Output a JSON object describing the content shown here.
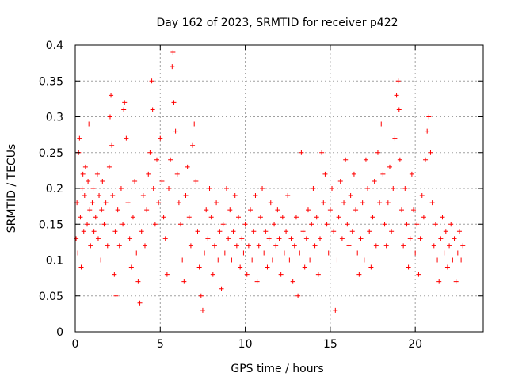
{
  "chart_data": {
    "type": "scatter",
    "title": "Day 162 of 2023, SRMTID for receiver p422",
    "xlabel": "GPS time / hours",
    "ylabel": "SRMTID / TECUs",
    "xlim": [
      0,
      24
    ],
    "ylim": [
      0,
      0.4
    ],
    "grid": true,
    "marker": "+",
    "color": "#ff0000",
    "xticks": [
      0,
      5,
      10,
      15,
      20
    ],
    "xtick_labels": [
      "0",
      "5",
      "10",
      "15",
      "20"
    ],
    "yticks": [
      0,
      0.05,
      0.1,
      0.15,
      0.2,
      0.25,
      0.3,
      0.35,
      0.4
    ],
    "ytick_labels": [
      "0",
      "0.05",
      "0.1",
      "0.15",
      "0.2",
      "0.25",
      "0.3",
      "0.35",
      "0.4"
    ],
    "series": [
      {
        "name": "SRMTID",
        "points": [
          [
            0.05,
            0.13
          ],
          [
            0.1,
            0.18
          ],
          [
            0.15,
            0.11
          ],
          [
            0.2,
            0.25
          ],
          [
            0.25,
            0.27
          ],
          [
            0.3,
            0.16
          ],
          [
            0.35,
            0.09
          ],
          [
            0.4,
            0.2
          ],
          [
            0.45,
            0.22
          ],
          [
            0.5,
            0.14
          ],
          [
            0.55,
            0.19
          ],
          [
            0.6,
            0.23
          ],
          [
            0.7,
            0.15
          ],
          [
            0.75,
            0.21
          ],
          [
            0.8,
            0.29
          ],
          [
            0.85,
            0.17
          ],
          [
            0.9,
            0.12
          ],
          [
            1.0,
            0.18
          ],
          [
            1.05,
            0.2
          ],
          [
            1.1,
            0.14
          ],
          [
            1.2,
            0.16
          ],
          [
            1.3,
            0.22
          ],
          [
            1.35,
            0.13
          ],
          [
            1.4,
            0.19
          ],
          [
            1.5,
            0.1
          ],
          [
            1.55,
            0.17
          ],
          [
            1.6,
            0.21
          ],
          [
            1.7,
            0.15
          ],
          [
            1.8,
            0.18
          ],
          [
            1.9,
            0.12
          ],
          [
            2.0,
            0.23
          ],
          [
            2.05,
            0.3
          ],
          [
            2.1,
            0.33
          ],
          [
            2.15,
            0.26
          ],
          [
            2.2,
            0.19
          ],
          [
            2.3,
            0.08
          ],
          [
            2.35,
            0.14
          ],
          [
            2.4,
            0.05
          ],
          [
            2.5,
            0.17
          ],
          [
            2.6,
            0.12
          ],
          [
            2.7,
            0.2
          ],
          [
            2.8,
            0.15
          ],
          [
            2.85,
            0.31
          ],
          [
            2.9,
            0.32
          ],
          [
            3.0,
            0.27
          ],
          [
            3.1,
            0.18
          ],
          [
            3.2,
            0.13
          ],
          [
            3.3,
            0.09
          ],
          [
            3.4,
            0.16
          ],
          [
            3.5,
            0.21
          ],
          [
            3.6,
            0.11
          ],
          [
            3.7,
            0.07
          ],
          [
            3.8,
            0.04
          ],
          [
            3.9,
            0.14
          ],
          [
            4.0,
            0.19
          ],
          [
            4.1,
            0.12
          ],
          [
            4.2,
            0.17
          ],
          [
            4.3,
            0.22
          ],
          [
            4.4,
            0.25
          ],
          [
            4.5,
            0.35
          ],
          [
            4.55,
            0.31
          ],
          [
            4.6,
            0.2
          ],
          [
            4.7,
            0.15
          ],
          [
            4.8,
            0.24
          ],
          [
            4.9,
            0.18
          ],
          [
            5.0,
            0.27
          ],
          [
            5.1,
            0.21
          ],
          [
            5.2,
            0.16
          ],
          [
            5.3,
            0.13
          ],
          [
            5.4,
            0.08
          ],
          [
            5.5,
            0.2
          ],
          [
            5.6,
            0.24
          ],
          [
            5.7,
            0.37
          ],
          [
            5.75,
            0.39
          ],
          [
            5.8,
            0.32
          ],
          [
            5.9,
            0.28
          ],
          [
            6.0,
            0.22
          ],
          [
            6.1,
            0.18
          ],
          [
            6.2,
            0.15
          ],
          [
            6.3,
            0.1
          ],
          [
            6.4,
            0.07
          ],
          [
            6.5,
            0.19
          ],
          [
            6.6,
            0.23
          ],
          [
            6.7,
            0.16
          ],
          [
            6.8,
            0.12
          ],
          [
            6.9,
            0.26
          ],
          [
            7.0,
            0.29
          ],
          [
            7.1,
            0.21
          ],
          [
            7.2,
            0.14
          ],
          [
            7.3,
            0.09
          ],
          [
            7.4,
            0.05
          ],
          [
            7.5,
            0.03
          ],
          [
            7.6,
            0.11
          ],
          [
            7.7,
            0.17
          ],
          [
            7.8,
            0.13
          ],
          [
            7.9,
            0.2
          ],
          [
            8.0,
            0.16
          ],
          [
            8.1,
            0.08
          ],
          [
            8.2,
            0.12
          ],
          [
            8.3,
            0.18
          ],
          [
            8.4,
            0.1
          ],
          [
            8.5,
            0.14
          ],
          [
            8.6,
            0.06
          ],
          [
            8.7,
            0.15
          ],
          [
            8.8,
            0.11
          ],
          [
            8.9,
            0.2
          ],
          [
            9.0,
            0.13
          ],
          [
            9.1,
            0.17
          ],
          [
            9.2,
            0.1
          ],
          [
            9.3,
            0.14
          ],
          [
            9.4,
            0.19
          ],
          [
            9.5,
            0.12
          ],
          [
            9.6,
            0.16
          ],
          [
            9.7,
            0.09
          ],
          [
            9.8,
            0.13
          ],
          [
            9.9,
            0.11
          ],
          [
            10.0,
            0.15
          ],
          [
            10.1,
            0.08
          ],
          [
            10.2,
            0.12
          ],
          [
            10.3,
            0.17
          ],
          [
            10.4,
            0.1
          ],
          [
            10.5,
            0.14
          ],
          [
            10.6,
            0.19
          ],
          [
            10.7,
            0.07
          ],
          [
            10.8,
            0.12
          ],
          [
            10.9,
            0.16
          ],
          [
            11.0,
            0.2
          ],
          [
            11.1,
            0.11
          ],
          [
            11.2,
            0.14
          ],
          [
            11.3,
            0.09
          ],
          [
            11.4,
            0.13
          ],
          [
            11.5,
            0.18
          ],
          [
            11.6,
            0.1
          ],
          [
            11.7,
            0.15
          ],
          [
            11.8,
            0.12
          ],
          [
            11.9,
            0.17
          ],
          [
            12.0,
            0.13
          ],
          [
            12.1,
            0.08
          ],
          [
            12.2,
            0.16
          ],
          [
            12.3,
            0.11
          ],
          [
            12.4,
            0.14
          ],
          [
            12.5,
            0.19
          ],
          [
            12.6,
            0.1
          ],
          [
            12.7,
            0.13
          ],
          [
            12.8,
            0.07
          ],
          [
            12.9,
            0.12
          ],
          [
            13.0,
            0.16
          ],
          [
            13.1,
            0.05
          ],
          [
            13.2,
            0.11
          ],
          [
            13.3,
            0.25
          ],
          [
            13.4,
            0.14
          ],
          [
            13.5,
            0.09
          ],
          [
            13.6,
            0.13
          ],
          [
            13.7,
            0.17
          ],
          [
            13.8,
            0.1
          ],
          [
            13.9,
            0.15
          ],
          [
            14.0,
            0.2
          ],
          [
            14.1,
            0.12
          ],
          [
            14.2,
            0.16
          ],
          [
            14.3,
            0.08
          ],
          [
            14.4,
            0.13
          ],
          [
            14.5,
            0.25
          ],
          [
            14.6,
            0.18
          ],
          [
            14.7,
            0.22
          ],
          [
            14.8,
            0.15
          ],
          [
            14.9,
            0.11
          ],
          [
            15.0,
            0.17
          ],
          [
            15.1,
            0.2
          ],
          [
            15.2,
            0.14
          ],
          [
            15.3,
            0.03
          ],
          [
            15.4,
            0.1
          ],
          [
            15.5,
            0.16
          ],
          [
            15.6,
            0.21
          ],
          [
            15.7,
            0.13
          ],
          [
            15.8,
            0.18
          ],
          [
            15.9,
            0.24
          ],
          [
            16.0,
            0.15
          ],
          [
            16.1,
            0.12
          ],
          [
            16.2,
            0.19
          ],
          [
            16.3,
            0.14
          ],
          [
            16.4,
            0.22
          ],
          [
            16.5,
            0.17
          ],
          [
            16.6,
            0.11
          ],
          [
            16.7,
            0.08
          ],
          [
            16.8,
            0.13
          ],
          [
            16.9,
            0.18
          ],
          [
            17.0,
            0.1
          ],
          [
            17.1,
            0.24
          ],
          [
            17.2,
            0.2
          ],
          [
            17.3,
            0.14
          ],
          [
            17.4,
            0.09
          ],
          [
            17.5,
            0.16
          ],
          [
            17.6,
            0.21
          ],
          [
            17.7,
            0.12
          ],
          [
            17.8,
            0.25
          ],
          [
            17.9,
            0.18
          ],
          [
            18.0,
            0.29
          ],
          [
            18.1,
            0.22
          ],
          [
            18.2,
            0.15
          ],
          [
            18.3,
            0.12
          ],
          [
            18.4,
            0.18
          ],
          [
            18.5,
            0.23
          ],
          [
            18.6,
            0.14
          ],
          [
            18.7,
            0.2
          ],
          [
            18.8,
            0.27
          ],
          [
            18.9,
            0.33
          ],
          [
            19.0,
            0.35
          ],
          [
            19.05,
            0.31
          ],
          [
            19.1,
            0.24
          ],
          [
            19.2,
            0.17
          ],
          [
            19.3,
            0.12
          ],
          [
            19.4,
            0.2
          ],
          [
            19.5,
            0.15
          ],
          [
            19.6,
            0.09
          ],
          [
            19.7,
            0.13
          ],
          [
            19.8,
            0.22
          ],
          [
            19.9,
            0.17
          ],
          [
            20.0,
            0.11
          ],
          [
            20.1,
            0.15
          ],
          [
            20.2,
            0.08
          ],
          [
            20.3,
            0.13
          ],
          [
            20.4,
            0.19
          ],
          [
            20.5,
            0.16
          ],
          [
            20.6,
            0.24
          ],
          [
            20.7,
            0.28
          ],
          [
            20.8,
            0.3
          ],
          [
            20.9,
            0.25
          ],
          [
            21.0,
            0.18
          ],
          [
            21.1,
            0.12
          ],
          [
            21.2,
            0.15
          ],
          [
            21.3,
            0.1
          ],
          [
            21.4,
            0.07
          ],
          [
            21.5,
            0.13
          ],
          [
            21.6,
            0.16
          ],
          [
            21.7,
            0.11
          ],
          [
            21.8,
            0.14
          ],
          [
            21.9,
            0.09
          ],
          [
            22.0,
            0.12
          ],
          [
            22.1,
            0.15
          ],
          [
            22.2,
            0.1
          ],
          [
            22.3,
            0.13
          ],
          [
            22.4,
            0.07
          ],
          [
            22.5,
            0.11
          ],
          [
            22.6,
            0.14
          ],
          [
            22.7,
            0.1
          ],
          [
            22.8,
            0.12
          ]
        ]
      }
    ]
  }
}
